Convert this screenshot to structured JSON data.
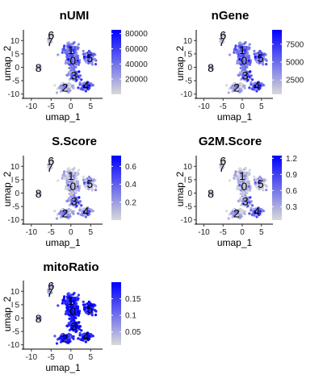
{
  "chart_data": [
    {
      "type": "scatter",
      "title": "nUMI",
      "xlabel": "umap_1",
      "ylabel": "umap_2",
      "xlim": [
        -12,
        8
      ],
      "ylim": [
        -11,
        14
      ],
      "x_ticks": [
        -10,
        -5,
        0,
        5
      ],
      "y_ticks": [
        -10,
        -5,
        0,
        5,
        10
      ],
      "colorbar": {
        "min": 0,
        "max": 85000,
        "ticks": [
          20000,
          40000,
          60000,
          80000
        ],
        "low_color": "#d9d9d9",
        "high_color": "#0000ff"
      },
      "cluster_labels": [
        "0",
        "1",
        "2",
        "3",
        "4",
        "5",
        "6",
        "7",
        "8"
      ]
    },
    {
      "type": "scatter",
      "title": "nGene",
      "xlabel": "umap_1",
      "ylabel": "umap_2",
      "xlim": [
        -12,
        8
      ],
      "ylim": [
        -11,
        14
      ],
      "x_ticks": [
        -10,
        -5,
        0,
        5
      ],
      "y_ticks": [
        -10,
        -5,
        0,
        5,
        10
      ],
      "colorbar": {
        "min": 500,
        "max": 9500,
        "ticks": [
          2500,
          5000,
          7500
        ],
        "low_color": "#d9d9d9",
        "high_color": "#0000ff"
      },
      "cluster_labels": [
        "0",
        "1",
        "2",
        "3",
        "4",
        "5",
        "6",
        "7",
        "8"
      ]
    },
    {
      "type": "scatter",
      "title": "S.Score",
      "xlabel": "umap_1",
      "ylabel": "umap_2",
      "xlim": [
        -12,
        8
      ],
      "ylim": [
        -11,
        14
      ],
      "x_ticks": [
        -10,
        -5,
        0,
        5
      ],
      "y_ticks": [
        -10,
        -5,
        0,
        5,
        10
      ],
      "colorbar": {
        "min": 0.0,
        "max": 0.72,
        "ticks": [
          0.2,
          0.4,
          0.6
        ],
        "low_color": "#d9d9d9",
        "high_color": "#0000ff"
      },
      "cluster_labels": [
        "0",
        "1",
        "2",
        "3",
        "4",
        "5",
        "6",
        "7",
        "8"
      ]
    },
    {
      "type": "scatter",
      "title": "G2M.Score",
      "xlabel": "umap_1",
      "ylabel": "umap_2",
      "xlim": [
        -12,
        8
      ],
      "ylim": [
        -11,
        14
      ],
      "x_ticks": [
        -10,
        -5,
        0,
        5
      ],
      "y_ticks": [
        -10,
        -5,
        0,
        5,
        10
      ],
      "colorbar": {
        "min": 0.05,
        "max": 1.25,
        "ticks": [
          0.3,
          0.6,
          0.9,
          1.2
        ],
        "low_color": "#d9d9d9",
        "high_color": "#0000ff"
      },
      "cluster_labels": [
        "0",
        "1",
        "2",
        "3",
        "4",
        "5",
        "6",
        "7",
        "8"
      ]
    },
    {
      "type": "scatter",
      "title": "mitoRatio",
      "xlabel": "umap_1",
      "ylabel": "umap_2",
      "xlim": [
        -12,
        8
      ],
      "ylim": [
        -11,
        14
      ],
      "x_ticks": [
        -10,
        -5,
        0,
        5
      ],
      "y_ticks": [
        -10,
        -5,
        0,
        5,
        10
      ],
      "colorbar": {
        "min": 0.01,
        "max": 0.2,
        "ticks": [
          0.05,
          0.1,
          0.15
        ],
        "low_color": "#d9d9d9",
        "high_color": "#0000ff"
      },
      "cluster_labels": [
        "0",
        "1",
        "2",
        "3",
        "4",
        "5",
        "6",
        "7",
        "8"
      ]
    }
  ]
}
